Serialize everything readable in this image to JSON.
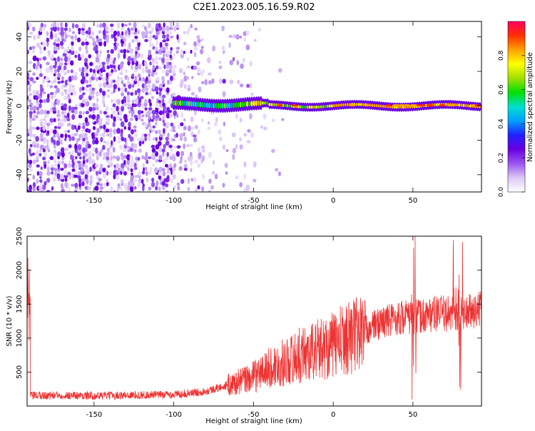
{
  "figure": {
    "title": "C2E1.2023.005.16.59.R02"
  },
  "colors": {
    "snr_line": "#ee3333",
    "axis": "#000000",
    "colormap": [
      "#ffffff",
      "#dcc8f5",
      "#9a55f0",
      "#6a00e0",
      "#2020ff",
      "#00a0ff",
      "#00e0d0",
      "#00e000",
      "#a0e000",
      "#ffff00",
      "#ffa000",
      "#ff3000",
      "#ff0060"
    ]
  },
  "chart_data": [
    {
      "type": "heatmap",
      "xlabel": "Height of straight line (km)",
      "ylabel": "Frequency (Hz)",
      "xlim": [
        -192,
        93
      ],
      "ylim": [
        -50,
        49
      ],
      "xticks": [
        -150,
        -100,
        -50,
        0,
        50
      ],
      "yticks": [
        -40,
        -20,
        0,
        20,
        40
      ],
      "grid": false,
      "colorbar": {
        "label": "Normalized spectral amplitude",
        "range": [
          0.0,
          1.0
        ],
        "ticks": [
          0.0,
          0.2,
          0.4,
          0.6,
          0.8
        ]
      },
      "features": {
        "carrier_center_hz": 0,
        "carrier_start_km": -100,
        "noise_dense_until_km": -100,
        "noise_sparse_until_km": -30
      }
    },
    {
      "type": "line",
      "xlabel": "Height of straight line (km)",
      "ylabel": "SNR (10 * v/v)",
      "xlim": [
        -192,
        93
      ],
      "ylim": [
        0,
        2500
      ],
      "xticks": [
        -150,
        -100,
        -50,
        0,
        50
      ],
      "yticks": [
        500,
        1000,
        1500,
        2000,
        2500
      ],
      "grid": false,
      "series": [
        {
          "x": [
            -190,
            -170,
            -150,
            -130,
            -110,
            -100,
            -90,
            -80,
            -70,
            -60,
            -50,
            -40,
            -30,
            -20,
            -10,
            0,
            10,
            20,
            30,
            40,
            45,
            50,
            55,
            60,
            70,
            75,
            78,
            80,
            85,
            90,
            93
          ],
          "y": [
            150,
            160,
            150,
            160,
            165,
            170,
            190,
            220,
            280,
            350,
            430,
            560,
            650,
            760,
            830,
            900,
            1020,
            1120,
            1230,
            1300,
            1310,
            1300,
            1320,
            1350,
            1360,
            1370,
            1300,
            1350,
            1380,
            1400,
            1420
          ]
        }
      ]
    }
  ]
}
